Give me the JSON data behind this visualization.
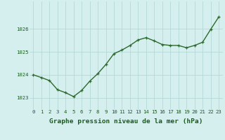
{
  "x": [
    0,
    1,
    2,
    3,
    4,
    5,
    6,
    7,
    8,
    9,
    10,
    11,
    12,
    13,
    14,
    15,
    16,
    17,
    18,
    19,
    20,
    21,
    22,
    23
  ],
  "y": [
    1024.0,
    1023.88,
    1023.75,
    1023.35,
    1023.22,
    1023.05,
    1023.32,
    1023.72,
    1024.05,
    1024.45,
    1024.92,
    1025.08,
    1025.28,
    1025.52,
    1025.62,
    1025.48,
    1025.32,
    1025.28,
    1025.28,
    1025.18,
    1025.28,
    1025.42,
    1025.98,
    1026.52
  ],
  "line_color": "#2d6a2d",
  "marker_color": "#2d6a2d",
  "bg_color": "#d4efee",
  "grid_color": "#aed4d2",
  "label_color": "#1a5c1a",
  "xlabel": "Graphe pression niveau de la mer (hPa)",
  "ylim": [
    1022.5,
    1027.2
  ],
  "yticks": [
    1023,
    1024,
    1025,
    1026
  ],
  "xticks": [
    0,
    1,
    2,
    3,
    4,
    5,
    6,
    7,
    8,
    9,
    10,
    11,
    12,
    13,
    14,
    15,
    16,
    17,
    18,
    19,
    20,
    21,
    22,
    23
  ],
  "tick_fontsize": 5.2,
  "xlabel_fontsize": 6.8,
  "tick_label_color": "#1a5c1a",
  "marker_size": 2.5,
  "line_width": 1.0
}
